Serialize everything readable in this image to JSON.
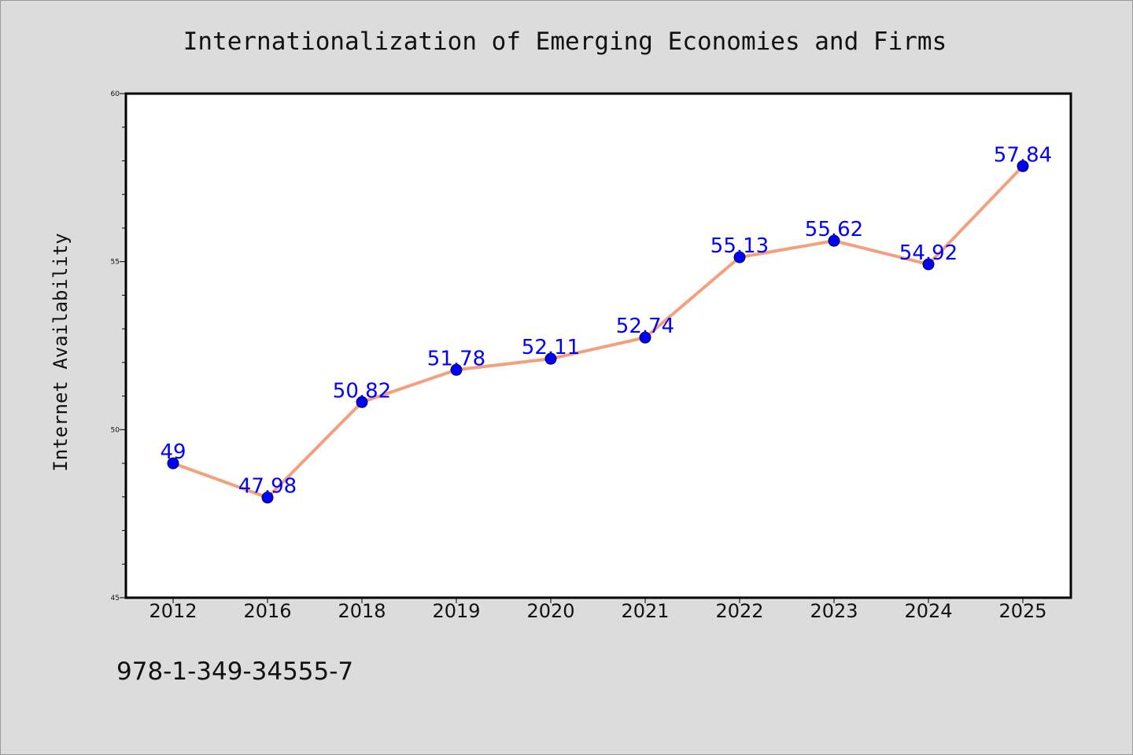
{
  "chart_data": {
    "type": "line",
    "title": "Internationalization of Emerging Economies and Firms",
    "ylabel": "Internet Availability",
    "xlabel": "",
    "categories": [
      "2012",
      "2016",
      "2018",
      "2019",
      "2020",
      "2021",
      "2022",
      "2023",
      "2024",
      "2025"
    ],
    "series": [
      {
        "values": [
          49,
          47.98,
          50.82,
          51.78,
          52.11,
          52.74,
          55.13,
          55.62,
          54.92,
          57.84
        ],
        "data_labels": [
          "49",
          "47.98",
          "50.82",
          "51.78",
          "52.11",
          "52.74",
          "55.13",
          "55.62",
          "54.92",
          "57.84"
        ]
      }
    ],
    "ylim": [
      45,
      60
    ],
    "yticks": [
      "45",
      "50",
      "55",
      "60"
    ],
    "grid": false,
    "line_color": "#f4a07f",
    "marker_color": "#0000ff",
    "label_color": "#0000ff"
  },
  "annotation": "978-1-349-34555-7"
}
